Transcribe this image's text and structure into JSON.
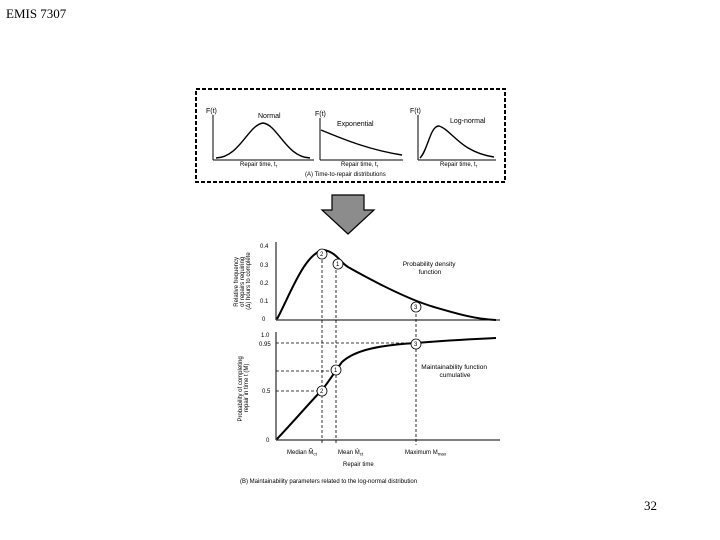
{
  "slide": {
    "header": "EMIS 7307",
    "page_number": "32"
  },
  "top_panel": {
    "normal": {
      "y_label": "F(t)",
      "name": "Normal",
      "x_label": "Repair time, t",
      "x_sub": "r"
    },
    "exponential": {
      "y_label": "F(t)",
      "name": "Exponential",
      "x_label": "Repair time, t",
      "x_sub": "r"
    },
    "lognormal": {
      "y_label": "F(t)",
      "name": "Log-normal",
      "x_label": "Repair time, t",
      "x_sub": "r"
    },
    "caption": "(A) Time-to-repair distributions"
  },
  "arrow": {
    "color": "#8c8c8c",
    "icon": "down-arrow-icon"
  },
  "pdf_chart": {
    "y_label_lines": [
      "Relative frequency",
      "of repairs requiring",
      "(Δ) hours to complete"
    ],
    "y_ticks": [
      "0.4",
      "0.3",
      "0.2",
      "0.1",
      "0"
    ],
    "curve_label_lines": [
      "Probability density",
      "function"
    ],
    "markers": [
      "2",
      "1",
      "3"
    ]
  },
  "cdf_chart": {
    "y_label_lines": [
      "Probability of completing",
      "repair in time t (M)"
    ],
    "y_ticks": [
      "1.0",
      "0.95",
      "0.5",
      "0"
    ],
    "curve_label_lines": [
      "Maintainability function",
      "cumulative"
    ],
    "markers": [
      "3",
      "1",
      "2"
    ],
    "x_labels": {
      "median": "Median",
      "median_sym": "M̃",
      "median_sub": "ct",
      "mean": "Mean",
      "mean_sym": "M̄",
      "mean_sub": "ct",
      "maximum": "Maximum",
      "maximum_sym": "M",
      "maximum_sub": "max"
    },
    "x_axis_title": "Repair time"
  },
  "bottom_caption": "(B) Maintainability parameters related to the log-normal distribution"
}
